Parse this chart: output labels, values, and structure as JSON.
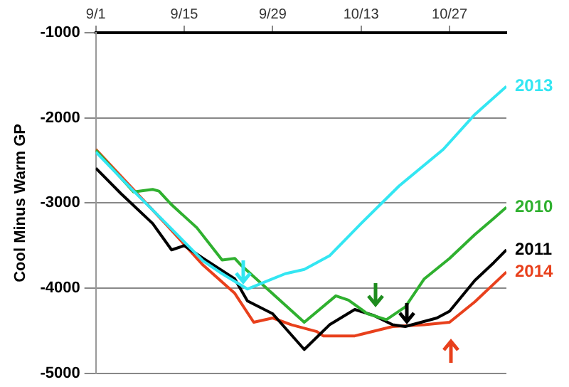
{
  "chart_data": {
    "type": "line",
    "ylabel": "Cool Minus Warm GP",
    "xlim": [
      "--09-01",
      "--11-05"
    ],
    "xticks": [
      {
        "value": "--09-01",
        "label": "9/1"
      },
      {
        "value": "--09-15",
        "label": "9/15"
      },
      {
        "value": "--09-29",
        "label": "9/29"
      },
      {
        "value": "--10-13",
        "label": "10/13"
      },
      {
        "value": "--10-27",
        "label": "10/27"
      }
    ],
    "ylim": [
      -5000,
      -1000
    ],
    "yticks": [
      -5000,
      -4000,
      -3000,
      -2000,
      -1000
    ],
    "grid": "y",
    "legend": false,
    "marker": "none",
    "line_style": "solid",
    "series": [
      {
        "name": "2013",
        "color": "#33e6f2",
        "x": [
          "--09-01",
          "--09-07",
          "--09-12",
          "--09-18",
          "--09-21",
          "--09-25",
          "--09-29",
          "--10-01",
          "--10-04",
          "--10-08",
          "--10-13",
          "--10-19",
          "--10-26",
          "--10-31",
          "--11-05"
        ],
        "values": [
          -2400,
          -2860,
          -3230,
          -3680,
          -3830,
          -4010,
          -3890,
          -3830,
          -3780,
          -3620,
          -3240,
          -2800,
          -2370,
          -1960,
          -1630
        ]
      },
      {
        "name": "2010",
        "color": "#2fb02f",
        "x": [
          "--09-01",
          "--09-07",
          "--09-10",
          "--09-11",
          "--09-13",
          "--09-17",
          "--09-21",
          "--09-23",
          "--09-24",
          "--10-04",
          "--10-09",
          "--10-11",
          "--10-14",
          "--10-17",
          "--10-20",
          "--10-23",
          "--10-27",
          "--10-31",
          "--11-03",
          "--11-05"
        ],
        "values": [
          -2380,
          -2870,
          -2840,
          -2860,
          -3020,
          -3290,
          -3670,
          -3650,
          -3730,
          -4400,
          -4090,
          -4140,
          -4300,
          -4370,
          -4220,
          -3890,
          -3650,
          -3370,
          -3180,
          -3050
        ]
      },
      {
        "name": "2011",
        "color": "#000000",
        "x": [
          "--09-01",
          "--09-05",
          "--09-10",
          "--09-13",
          "--09-15",
          "--09-18",
          "--09-23",
          "--09-25",
          "--09-29",
          "--10-04",
          "--10-08",
          "--10-12",
          "--10-15",
          "--10-18",
          "--10-20",
          "--10-25",
          "--10-27",
          "--10-31",
          "--11-03",
          "--11-05"
        ],
        "values": [
          -2590,
          -2890,
          -3240,
          -3550,
          -3500,
          -3650,
          -3890,
          -4150,
          -4300,
          -4720,
          -4430,
          -4250,
          -4320,
          -4430,
          -4450,
          -4350,
          -4270,
          -3910,
          -3700,
          -3550
        ]
      },
      {
        "name": "2014",
        "color": "#e8401c",
        "x": [
          "--09-01",
          "--09-12",
          "--09-18",
          "--09-23",
          "--09-26",
          "--09-29",
          "--10-02",
          "--10-06",
          "--10-07",
          "--10-12",
          "--10-18",
          "--10-23",
          "--10-27",
          "--10-31",
          "--11-03",
          "--11-05"
        ],
        "values": [
          -2370,
          -3240,
          -3730,
          -4060,
          -4400,
          -4350,
          -4430,
          -4510,
          -4560,
          -4560,
          -4450,
          -4430,
          -4400,
          -4160,
          -3950,
          -3810
        ]
      }
    ]
  }
}
